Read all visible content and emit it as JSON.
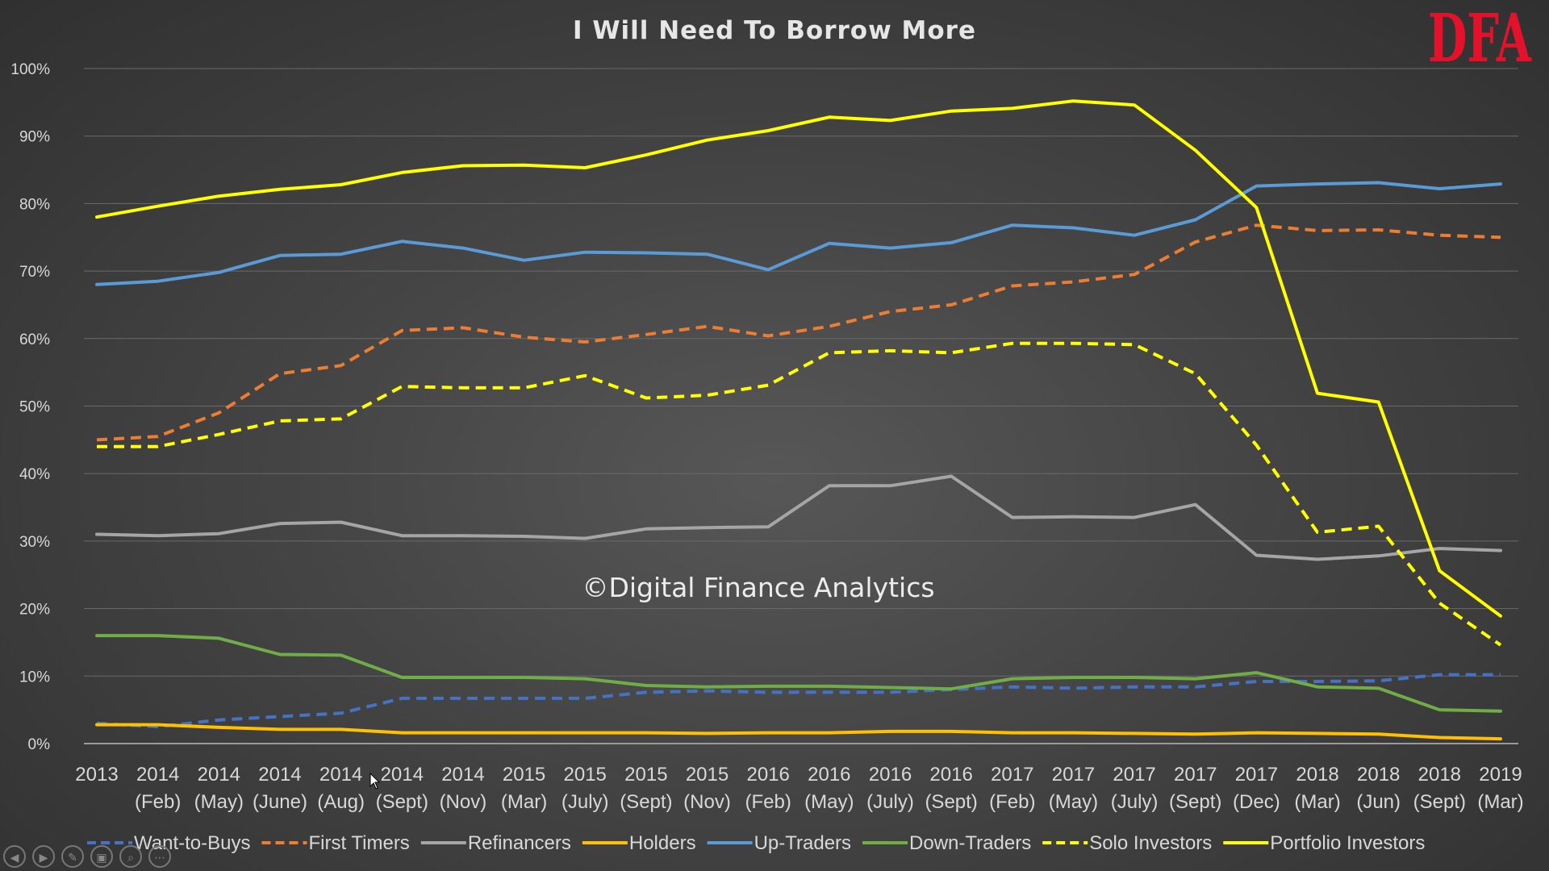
{
  "brand": {
    "logo_text": "DFA",
    "logo_color": "#e3122a"
  },
  "watermark": "©Digital Finance Analytics",
  "chart_data": {
    "type": "line",
    "title": "I Will Need To Borrow More",
    "xlabel": "",
    "ylabel": "",
    "ylim": [
      0,
      100
    ],
    "y_ticks": [
      "0%",
      "10%",
      "20%",
      "30%",
      "40%",
      "50%",
      "60%",
      "70%",
      "80%",
      "90%",
      "100%"
    ],
    "grid": true,
    "legend_position": "bottom",
    "categories": [
      [
        "2013",
        ""
      ],
      [
        "2014",
        "(Feb)"
      ],
      [
        "2014",
        "(May)"
      ],
      [
        "2014",
        "(June)"
      ],
      [
        "2014",
        "(Aug)"
      ],
      [
        "2014",
        "(Sept)"
      ],
      [
        "2014",
        "(Nov)"
      ],
      [
        "2015",
        "(Mar)"
      ],
      [
        "2015",
        "(July)"
      ],
      [
        "2015",
        "(Sept)"
      ],
      [
        "2015",
        "(Nov)"
      ],
      [
        "2016",
        "(Feb)"
      ],
      [
        "2016",
        "(May)"
      ],
      [
        "2016",
        "(July)"
      ],
      [
        "2016",
        "(Sept)"
      ],
      [
        "2017",
        "(Feb)"
      ],
      [
        "2017",
        "(May)"
      ],
      [
        "2017",
        "(July)"
      ],
      [
        "2017",
        "(Sept)"
      ],
      [
        "2017",
        "(Dec)"
      ],
      [
        "2018",
        "(Mar)"
      ],
      [
        "2018",
        "(Jun)"
      ],
      [
        "2018",
        "(Sept)"
      ],
      [
        "2019",
        "(Mar)"
      ]
    ],
    "series": [
      {
        "name": "Want-to-Buys",
        "color": "#4472c4",
        "dashed": true,
        "values": [
          3,
          2.5,
          3.5,
          4,
          4.5,
          6.7,
          6.7,
          6.7,
          6.7,
          7.6,
          7.8,
          7.6,
          7.6,
          7.6,
          8,
          8.4,
          8.2,
          8.4,
          8.4,
          9.2,
          9.2,
          9.3,
          10.2,
          10.2
        ]
      },
      {
        "name": "First Timers",
        "color": "#ed7d31",
        "dashed": true,
        "values": [
          45,
          45.5,
          49,
          54.8,
          56,
          61.2,
          61.6,
          60.2,
          59.5,
          60.6,
          61.8,
          60.4,
          61.8,
          64,
          65,
          67.8,
          68.4,
          69.5,
          74.3,
          76.8,
          76,
          76.1,
          75.3,
          75
        ]
      },
      {
        "name": "Refinancers",
        "color": "#a5a5a5",
        "dashed": false,
        "values": [
          31,
          30.8,
          31.1,
          32.6,
          32.8,
          30.8,
          30.8,
          30.7,
          30.4,
          31.8,
          32,
          32.1,
          38.2,
          38.2,
          39.6,
          33.5,
          33.6,
          33.5,
          35.4,
          27.9,
          27.3,
          27.8,
          28.9,
          28.6
        ]
      },
      {
        "name": "Holders",
        "color": "#ffc000",
        "dashed": false,
        "values": [
          2.8,
          2.8,
          2.4,
          2.1,
          2.1,
          1.6,
          1.6,
          1.6,
          1.6,
          1.6,
          1.5,
          1.6,
          1.6,
          1.8,
          1.8,
          1.6,
          1.6,
          1.5,
          1.4,
          1.6,
          1.5,
          1.4,
          0.9,
          0.7
        ]
      },
      {
        "name": "Up-Traders",
        "color": "#5b9bd5",
        "dashed": false,
        "values": [
          68,
          68.5,
          69.8,
          72.3,
          72.5,
          74.4,
          73.4,
          71.6,
          72.8,
          72.7,
          72.5,
          70.2,
          74.1,
          73.4,
          74.2,
          76.8,
          76.4,
          75.3,
          77.6,
          82.6,
          82.9,
          83.1,
          82.2,
          82.9
        ]
      },
      {
        "name": "Down-Traders",
        "color": "#70ad47",
        "dashed": false,
        "values": [
          16,
          16,
          15.6,
          13.2,
          13.1,
          9.8,
          9.8,
          9.8,
          9.6,
          8.6,
          8.4,
          8.5,
          8.5,
          8.3,
          8.1,
          9.6,
          9.8,
          9.8,
          9.6,
          10.5,
          8.4,
          8.2,
          5,
          4.8
        ]
      },
      {
        "name": "Solo Investors",
        "color": "#ffff00",
        "dashed": true,
        "values": [
          44,
          44,
          45.8,
          47.8,
          48.1,
          52.9,
          52.7,
          52.7,
          54.5,
          51.2,
          51.6,
          53.1,
          57.9,
          58.2,
          57.9,
          59.3,
          59.3,
          59.1,
          54.8,
          44.2,
          31.3,
          32.2,
          20.8,
          14.6
        ]
      },
      {
        "name": "Portfolio Investors",
        "color": "#ffff00",
        "dashed": false,
        "values": [
          78,
          79.6,
          81.1,
          82.1,
          82.8,
          84.6,
          85.6,
          85.7,
          85.3,
          87.2,
          89.4,
          90.8,
          92.8,
          92.3,
          93.7,
          94.1,
          95.2,
          94.6,
          87.9,
          79.4,
          51.9,
          50.6,
          25.6,
          18.9
        ]
      }
    ]
  }
}
